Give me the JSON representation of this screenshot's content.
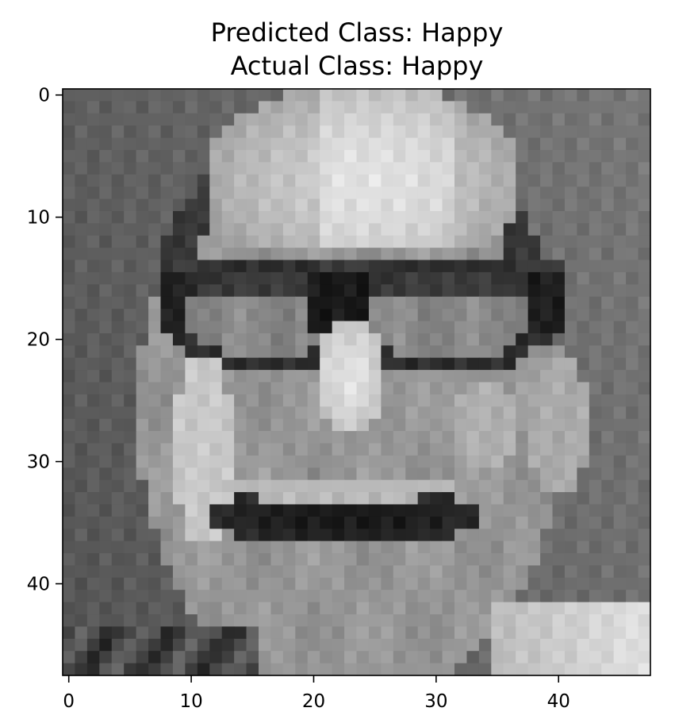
{
  "chart_data": {
    "type": "heatmap",
    "title_lines": [
      "Predicted Class: Happy",
      "Actual Class: Happy"
    ],
    "colormap": "gray",
    "image_size": [
      48,
      48
    ],
    "x_ticks": [
      0,
      10,
      20,
      30,
      40
    ],
    "y_ticks": [
      0,
      10,
      20,
      30,
      40
    ],
    "xlim": [
      -0.5,
      47.5
    ],
    "ylim": [
      47.5,
      -0.5
    ],
    "xlabel": "",
    "ylabel": ""
  }
}
